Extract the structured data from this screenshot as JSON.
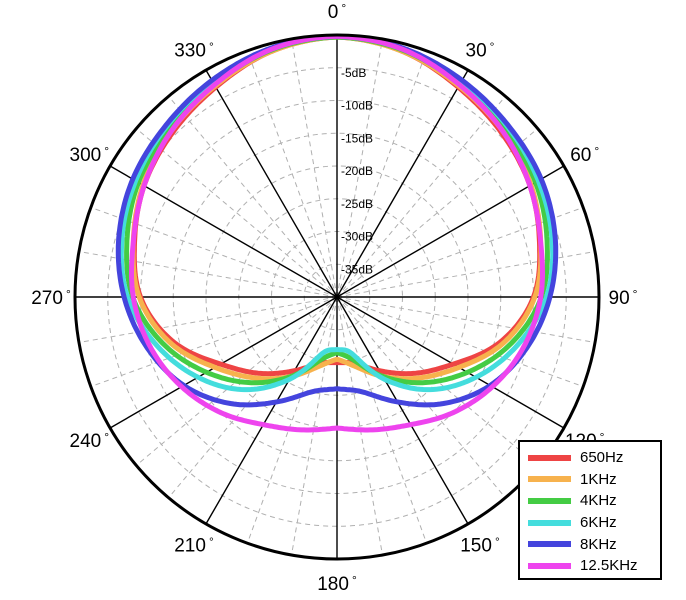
{
  "chart_data": {
    "type": "polar-line",
    "title": "",
    "radial_axis": {
      "unit": "dB",
      "range": [
        -40,
        0
      ],
      "ring_step": 5,
      "tick_labels": [
        "-5dB",
        "-10dB",
        "-15dB",
        "-20dB",
        "-25dB",
        "-30dB",
        "-35dB"
      ]
    },
    "angular_axis": {
      "unit": "degree",
      "tick_labels": [
        "0",
        "30",
        "60",
        "90",
        "120",
        "150",
        "180",
        "210",
        "240",
        "270",
        "300",
        "330"
      ],
      "degree_symbol": "°",
      "grid_step_deg": 10
    },
    "angles": [
      0,
      15,
      30,
      45,
      60,
      75,
      90,
      105,
      120,
      135,
      150,
      165,
      180
    ],
    "series": [
      {
        "name": "650Hz",
        "color": "#ee4444",
        "values": [
          -0.3,
          -1.2,
          -3.0,
          -4.5,
          -6.0,
          -8.0,
          -10.0,
          -14.0,
          -19.5,
          -23.5,
          -27.0,
          -29.5,
          -30.0
        ]
      },
      {
        "name": "1KHz",
        "color": "#f7b24d",
        "values": [
          -0.3,
          -1.2,
          -2.8,
          -4.2,
          -5.8,
          -7.8,
          -9.8,
          -13.5,
          -18.5,
          -22.5,
          -26.0,
          -29.0,
          -30.5
        ]
      },
      {
        "name": "4KHz",
        "color": "#44cc44",
        "values": [
          -0.3,
          -1.0,
          -2.5,
          -3.8,
          -5.0,
          -6.8,
          -8.8,
          -12.5,
          -17.0,
          -21.5,
          -26.0,
          -30.0,
          -31.5
        ]
      },
      {
        "name": "6KHz",
        "color": "#44dddd",
        "values": [
          -0.2,
          -0.8,
          -2.0,
          -3.2,
          -4.5,
          -6.0,
          -8.0,
          -11.5,
          -15.5,
          -20.0,
          -25.5,
          -31.0,
          -32.0
        ]
      },
      {
        "name": "8KHz",
        "color": "#4444dd",
        "values": [
          -0.2,
          -0.7,
          -1.8,
          -3.0,
          -4.0,
          -5.5,
          -7.5,
          -10.0,
          -13.0,
          -17.0,
          -21.5,
          -25.0,
          -26.0
        ]
      },
      {
        "name": "12.5KHz",
        "color": "#ee44ee",
        "values": [
          -0.2,
          -0.9,
          -2.6,
          -4.2,
          -6.0,
          -7.8,
          -8.9,
          -10.5,
          -12.6,
          -15.0,
          -17.5,
          -19.0,
          -20.0
        ]
      }
    ],
    "legend": {
      "position": "bottom-right"
    },
    "grid": true
  }
}
